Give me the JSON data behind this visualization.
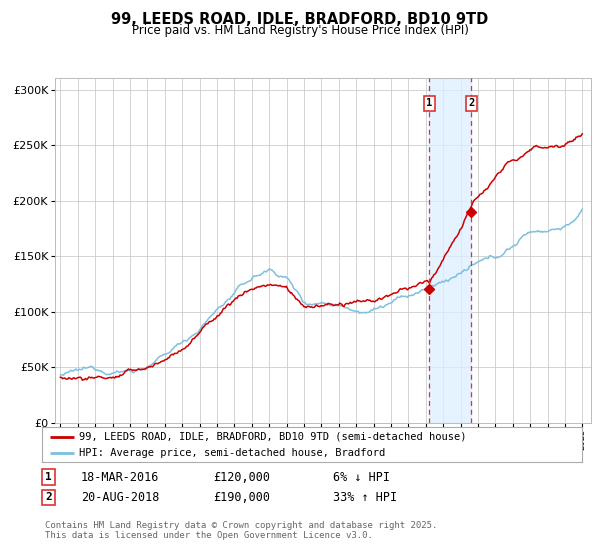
{
  "title": "99, LEEDS ROAD, IDLE, BRADFORD, BD10 9TD",
  "subtitle": "Price paid vs. HM Land Registry's House Price Index (HPI)",
  "legend_line1": "99, LEEDS ROAD, IDLE, BRADFORD, BD10 9TD (semi-detached house)",
  "legend_line2": "HPI: Average price, semi-detached house, Bradford",
  "transaction1_date": "18-MAR-2016",
  "transaction1_price": 120000,
  "transaction1_pct": "6% ↓ HPI",
  "transaction2_date": "20-AUG-2018",
  "transaction2_price": 190000,
  "transaction2_pct": "33% ↑ HPI",
  "footer": "Contains HM Land Registry data © Crown copyright and database right 2025.\nThis data is licensed under the Open Government Licence v3.0.",
  "hpi_color": "#7fbfdf",
  "price_color": "#cc0000",
  "marker_color": "#cc0000",
  "vline_color": "#dd3333",
  "shade_color": "#ddeeff",
  "background_color": "#ffffff",
  "grid_color": "#cccccc",
  "ylim": [
    0,
    310000
  ],
  "xlim_start": 1994.7,
  "xlim_end": 2025.5,
  "transaction1_x": 2016.21,
  "transaction2_x": 2018.63,
  "hpi_anchors_x": [
    1995,
    1996,
    1997,
    1998,
    1999,
    2000,
    2001,
    2002,
    2003,
    2004,
    2005,
    2006,
    2007,
    2008,
    2009,
    2010,
    2011,
    2012,
    2013,
    2014,
    2015,
    2016,
    2017,
    2018,
    2019,
    2020,
    2021,
    2022,
    2023,
    2024,
    2025
  ],
  "hpi_anchors_v": [
    43000,
    44000,
    45000,
    46000,
    48000,
    52000,
    60000,
    72000,
    86000,
    103000,
    118000,
    130000,
    138000,
    132000,
    110000,
    112000,
    112000,
    110000,
    112000,
    118000,
    122000,
    127000,
    133000,
    142000,
    148000,
    150000,
    162000,
    175000,
    178000,
    182000,
    195000
  ],
  "price_anchors_x": [
    1995,
    1996,
    1997,
    1998,
    1999,
    2000,
    2001,
    2002,
    2003,
    2004,
    2005,
    2006,
    2007,
    2008,
    2009,
    2010,
    2011,
    2012,
    2013,
    2014,
    2015,
    2016.21,
    2018.63,
    2019,
    2020,
    2021,
    2022,
    2023,
    2024,
    2025
  ],
  "price_anchors_v": [
    41000,
    42000,
    43000,
    44000,
    46000,
    50000,
    57000,
    68000,
    82000,
    98000,
    113000,
    123000,
    128000,
    124000,
    106000,
    108000,
    108000,
    106000,
    108000,
    113000,
    117000,
    120000,
    190000,
    200000,
    215000,
    230000,
    240000,
    245000,
    250000,
    258000
  ]
}
